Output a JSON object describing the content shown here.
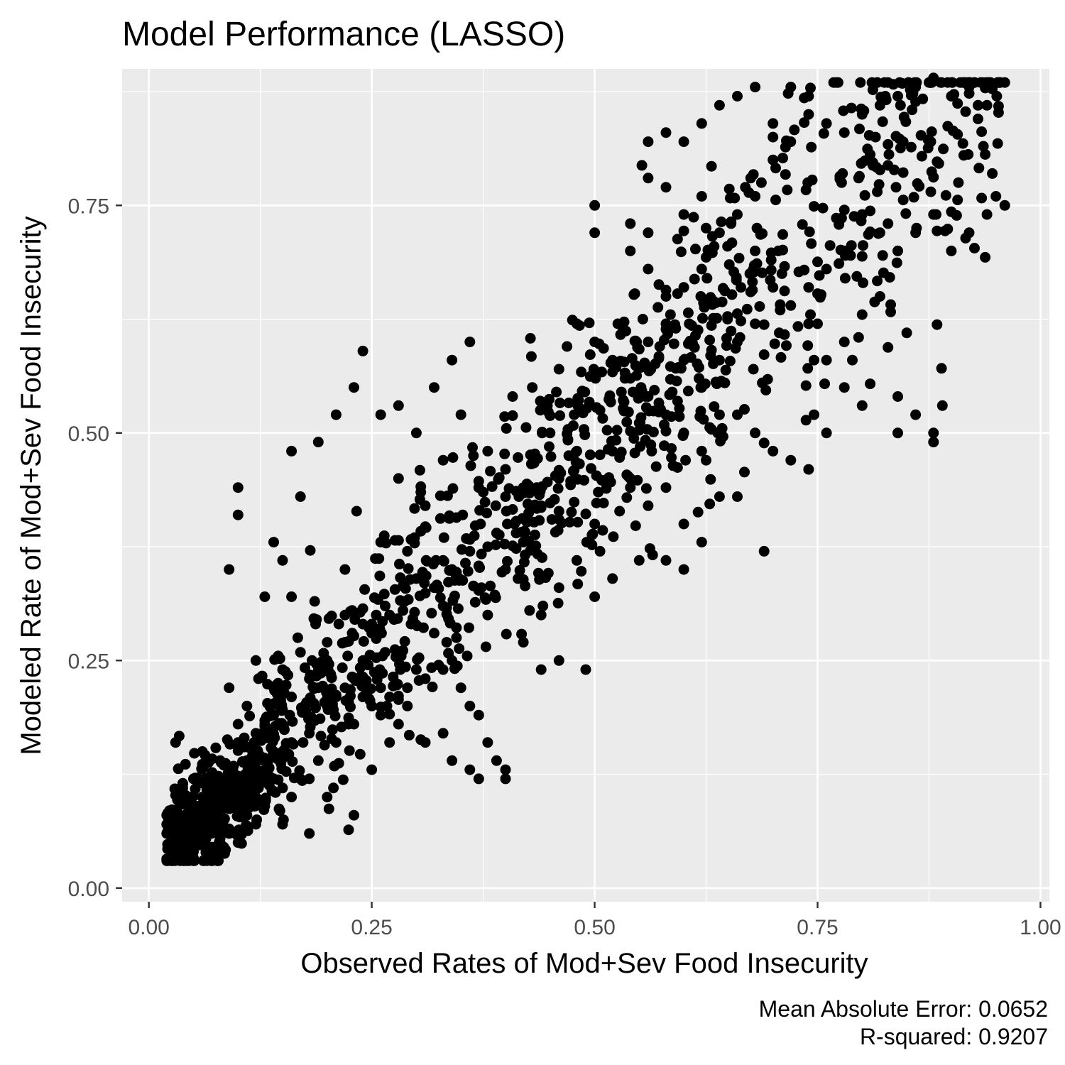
{
  "chart_data": {
    "type": "scatter",
    "title": "Model Performance (LASSO)",
    "xlabel": "Observed Rates of Mod+Sev Food Insecurity",
    "ylabel": "Modeled Rate of Mod+Sev Food Insecurity",
    "xlim": [
      -0.03,
      1.01
    ],
    "ylim": [
      -0.015,
      0.9
    ],
    "x_ticks": [
      0.0,
      0.25,
      0.5,
      0.75,
      1.0
    ],
    "x_tick_labels": [
      "0.00",
      "0.25",
      "0.50",
      "0.75",
      "1.00"
    ],
    "y_ticks": [
      0.0,
      0.25,
      0.5,
      0.75
    ],
    "y_tick_labels": [
      "0.00",
      "0.25",
      "0.50",
      "0.75"
    ],
    "grid": true,
    "point_color": "#000000",
    "panel_color": "#ebebeb",
    "caption": [
      "Mean Absolute Error: 0.0652",
      "R-squared: 0.9207"
    ],
    "point_count": 1600,
    "points": [
      [
        0.02,
        0.08
      ],
      [
        0.03,
        0.06
      ],
      [
        0.04,
        0.05
      ],
      [
        0.05,
        0.04
      ],
      [
        0.06,
        0.07
      ],
      [
        0.07,
        0.09
      ],
      [
        0.08,
        0.05
      ],
      [
        0.09,
        0.1
      ],
      [
        0.05,
        0.12
      ],
      [
        0.06,
        0.15
      ],
      [
        0.08,
        0.14
      ],
      [
        0.1,
        0.16
      ],
      [
        0.11,
        0.2
      ],
      [
        0.13,
        0.18
      ],
      [
        0.14,
        0.22
      ],
      [
        0.12,
        0.25
      ],
      [
        0.15,
        0.24
      ],
      [
        0.09,
        0.22
      ],
      [
        0.1,
        0.18
      ],
      [
        0.03,
        0.16
      ],
      [
        0.04,
        0.1
      ],
      [
        0.07,
        0.03
      ],
      [
        0.1,
        0.06
      ],
      [
        0.12,
        0.1
      ],
      [
        0.15,
        0.07
      ],
      [
        0.15,
        0.15
      ],
      [
        0.18,
        0.12
      ],
      [
        0.19,
        0.22
      ],
      [
        0.2,
        0.27
      ],
      [
        0.22,
        0.3
      ],
      [
        0.24,
        0.25
      ],
      [
        0.26,
        0.22
      ],
      [
        0.28,
        0.26
      ],
      [
        0.3,
        0.24
      ],
      [
        0.32,
        0.28
      ],
      [
        0.34,
        0.25
      ],
      [
        0.36,
        0.2
      ],
      [
        0.38,
        0.16
      ],
      [
        0.4,
        0.13
      ],
      [
        0.36,
        0.13
      ],
      [
        0.33,
        0.17
      ],
      [
        0.29,
        0.2
      ],
      [
        0.27,
        0.16
      ],
      [
        0.25,
        0.13
      ],
      [
        0.23,
        0.08
      ],
      [
        0.2,
        0.1
      ],
      [
        0.18,
        0.06
      ],
      [
        0.22,
        0.35
      ],
      [
        0.26,
        0.38
      ],
      [
        0.28,
        0.45
      ],
      [
        0.3,
        0.5
      ],
      [
        0.32,
        0.55
      ],
      [
        0.34,
        0.58
      ],
      [
        0.36,
        0.6
      ],
      [
        0.35,
        0.52
      ],
      [
        0.33,
        0.47
      ],
      [
        0.31,
        0.42
      ],
      [
        0.29,
        0.37
      ],
      [
        0.26,
        0.52
      ],
      [
        0.28,
        0.53
      ],
      [
        0.23,
        0.55
      ],
      [
        0.24,
        0.59
      ],
      [
        0.21,
        0.52
      ],
      [
        0.16,
        0.48
      ],
      [
        0.17,
        0.43
      ],
      [
        0.19,
        0.49
      ],
      [
        0.1,
        0.44
      ],
      [
        0.1,
        0.41
      ],
      [
        0.14,
        0.38
      ],
      [
        0.15,
        0.36
      ],
      [
        0.13,
        0.32
      ],
      [
        0.16,
        0.32
      ],
      [
        0.09,
        0.35
      ],
      [
        0.38,
        0.3
      ],
      [
        0.4,
        0.35
      ],
      [
        0.42,
        0.38
      ],
      [
        0.44,
        0.42
      ],
      [
        0.46,
        0.45
      ],
      [
        0.48,
        0.48
      ],
      [
        0.45,
        0.5
      ],
      [
        0.43,
        0.55
      ],
      [
        0.46,
        0.57
      ],
      [
        0.48,
        0.62
      ],
      [
        0.5,
        0.6
      ],
      [
        0.52,
        0.58
      ],
      [
        0.54,
        0.56
      ],
      [
        0.56,
        0.6
      ],
      [
        0.58,
        0.62
      ],
      [
        0.6,
        0.58
      ],
      [
        0.62,
        0.55
      ],
      [
        0.64,
        0.52
      ],
      [
        0.52,
        0.48
      ],
      [
        0.54,
        0.45
      ],
      [
        0.56,
        0.42
      ],
      [
        0.58,
        0.44
      ],
      [
        0.6,
        0.4
      ],
      [
        0.62,
        0.38
      ],
      [
        0.64,
        0.43
      ],
      [
        0.5,
        0.4
      ],
      [
        0.48,
        0.36
      ],
      [
        0.46,
        0.33
      ],
      [
        0.44,
        0.3
      ],
      [
        0.42,
        0.27
      ],
      [
        0.44,
        0.24
      ],
      [
        0.46,
        0.25
      ],
      [
        0.49,
        0.24
      ],
      [
        0.5,
        0.32
      ],
      [
        0.52,
        0.34
      ],
      [
        0.55,
        0.36
      ],
      [
        0.58,
        0.36
      ],
      [
        0.6,
        0.35
      ],
      [
        0.5,
        0.75
      ],
      [
        0.5,
        0.72
      ],
      [
        0.54,
        0.7
      ],
      [
        0.56,
        0.68
      ],
      [
        0.58,
        0.65
      ],
      [
        0.6,
        0.66
      ],
      [
        0.62,
        0.68
      ],
      [
        0.64,
        0.72
      ],
      [
        0.66,
        0.74
      ],
      [
        0.68,
        0.76
      ],
      [
        0.7,
        0.8
      ],
      [
        0.72,
        0.82
      ],
      [
        0.74,
        0.85
      ],
      [
        0.76,
        0.84
      ],
      [
        0.78,
        0.83
      ],
      [
        0.8,
        0.85
      ],
      [
        0.82,
        0.86
      ],
      [
        0.84,
        0.87
      ],
      [
        0.86,
        0.88
      ],
      [
        0.88,
        0.89
      ],
      [
        0.9,
        0.87
      ],
      [
        0.92,
        0.88
      ],
      [
        0.93,
        0.86
      ],
      [
        0.95,
        0.76
      ],
      [
        0.96,
        0.75
      ],
      [
        0.94,
        0.74
      ],
      [
        0.92,
        0.72
      ],
      [
        0.9,
        0.7
      ],
      [
        0.88,
        0.74
      ],
      [
        0.86,
        0.72
      ],
      [
        0.84,
        0.7
      ],
      [
        0.82,
        0.72
      ],
      [
        0.8,
        0.74
      ],
      [
        0.78,
        0.7
      ],
      [
        0.76,
        0.68
      ],
      [
        0.74,
        0.66
      ],
      [
        0.72,
        0.64
      ],
      [
        0.7,
        0.66
      ],
      [
        0.68,
        0.62
      ],
      [
        0.66,
        0.6
      ],
      [
        0.64,
        0.58
      ],
      [
        0.66,
        0.52
      ],
      [
        0.68,
        0.5
      ],
      [
        0.7,
        0.48
      ],
      [
        0.72,
        0.47
      ],
      [
        0.74,
        0.46
      ],
      [
        0.76,
        0.5
      ],
      [
        0.78,
        0.55
      ],
      [
        0.76,
        0.58
      ],
      [
        0.78,
        0.6
      ],
      [
        0.74,
        0.62
      ],
      [
        0.8,
        0.63
      ],
      [
        0.82,
        0.65
      ],
      [
        0.84,
        0.54
      ],
      [
        0.84,
        0.5
      ],
      [
        0.86,
        0.52
      ],
      [
        0.88,
        0.5
      ],
      [
        0.89,
        0.53
      ],
      [
        0.88,
        0.49
      ],
      [
        0.85,
        0.61
      ],
      [
        0.8,
        0.53
      ],
      [
        0.6,
        0.82
      ],
      [
        0.58,
        0.83
      ],
      [
        0.56,
        0.82
      ],
      [
        0.62,
        0.84
      ],
      [
        0.64,
        0.86
      ],
      [
        0.66,
        0.87
      ],
      [
        0.68,
        0.88
      ],
      [
        0.72,
        0.88
      ],
      [
        0.74,
        0.87
      ],
      [
        0.7,
        0.84
      ],
      [
        0.56,
        0.78
      ],
      [
        0.58,
        0.77
      ],
      [
        0.54,
        0.73
      ],
      [
        0.6,
        0.74
      ],
      [
        0.62,
        0.76
      ],
      [
        0.68,
        0.7
      ],
      [
        0.69,
        0.37
      ],
      [
        0.66,
        0.43
      ],
      [
        0.62,
        0.48
      ],
      [
        0.6,
        0.5
      ],
      [
        0.58,
        0.52
      ],
      [
        0.56,
        0.54
      ],
      [
        0.38,
        0.48
      ],
      [
        0.4,
        0.46
      ],
      [
        0.42,
        0.44
      ],
      [
        0.4,
        0.43
      ],
      [
        0.37,
        0.44
      ],
      [
        0.41,
        0.4
      ],
      [
        0.39,
        0.39
      ],
      [
        0.36,
        0.37
      ],
      [
        0.34,
        0.35
      ],
      [
        0.32,
        0.33
      ],
      [
        0.3,
        0.34
      ],
      [
        0.33,
        0.31
      ],
      [
        0.27,
        0.3
      ],
      [
        0.25,
        0.28
      ],
      [
        0.24,
        0.29
      ],
      [
        0.22,
        0.27
      ],
      [
        0.2,
        0.25
      ],
      [
        0.18,
        0.23
      ],
      [
        0.16,
        0.21
      ],
      [
        0.14,
        0.19
      ],
      [
        0.12,
        0.17
      ],
      [
        0.11,
        0.14
      ],
      [
        0.13,
        0.13
      ],
      [
        0.14,
        0.12
      ],
      [
        0.16,
        0.1
      ],
      [
        0.17,
        0.12
      ],
      [
        0.19,
        0.14
      ],
      [
        0.21,
        0.16
      ],
      [
        0.23,
        0.18
      ],
      [
        0.25,
        0.2
      ],
      [
        0.27,
        0.21
      ],
      [
        0.29,
        0.22
      ],
      [
        0.31,
        0.23
      ],
      [
        0.33,
        0.24
      ],
      [
        0.35,
        0.22
      ],
      [
        0.37,
        0.19
      ],
      [
        0.39,
        0.14
      ],
      [
        0.4,
        0.12
      ],
      [
        0.37,
        0.12
      ],
      [
        0.34,
        0.14
      ],
      [
        0.31,
        0.16
      ],
      [
        0.28,
        0.18
      ],
      [
        0.26,
        0.19
      ],
      [
        0.24,
        0.21
      ],
      [
        0.22,
        0.22
      ],
      [
        0.2,
        0.2
      ],
      [
        0.18,
        0.17
      ],
      [
        0.16,
        0.16
      ],
      [
        0.14,
        0.15
      ],
      [
        0.12,
        0.12
      ],
      [
        0.1,
        0.11
      ],
      [
        0.09,
        0.13
      ],
      [
        0.08,
        0.11
      ],
      [
        0.07,
        0.12
      ],
      [
        0.06,
        0.1
      ],
      [
        0.05,
        0.09
      ],
      [
        0.04,
        0.08
      ],
      [
        0.03,
        0.07
      ],
      [
        0.02,
        0.06
      ],
      [
        0.02,
        0.07
      ],
      [
        0.03,
        0.05
      ],
      [
        0.05,
        0.06
      ],
      [
        0.06,
        0.05
      ],
      [
        0.08,
        0.07
      ],
      [
        0.09,
        0.06
      ],
      [
        0.11,
        0.08
      ],
      [
        0.12,
        0.07
      ],
      [
        0.13,
        0.09
      ],
      [
        0.1,
        0.09
      ],
      [
        0.07,
        0.06
      ]
    ]
  }
}
